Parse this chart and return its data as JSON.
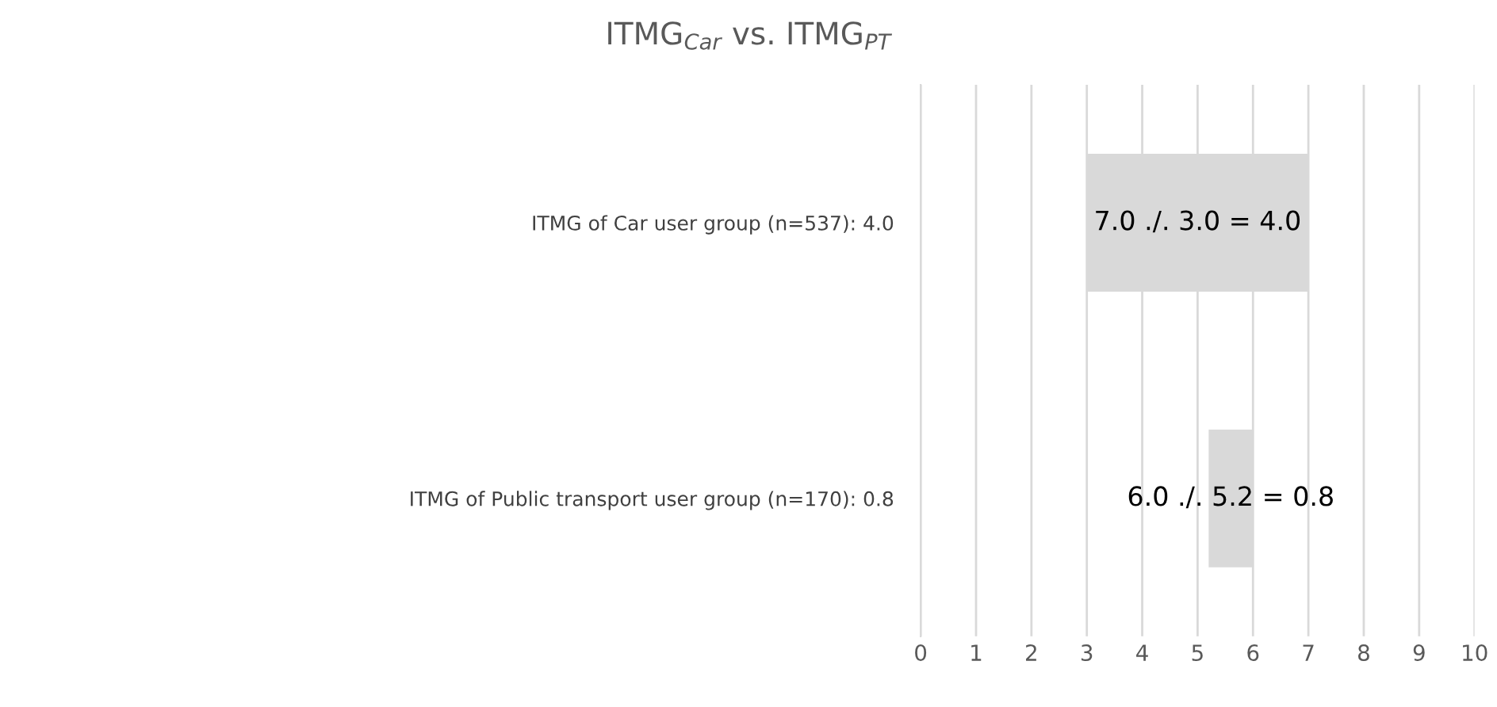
{
  "chart_data": {
    "type": "bar",
    "orientation": "horizontal",
    "title": "ITMG$_{Car}$ vs. ITMG$_{PT}$",
    "categories": [
      "ITMG of Car user group (n=537): 4.0",
      "ITMG of Public transport user group (n=170): 0.8"
    ],
    "values": [
      4.0,
      0.8
    ],
    "base": [
      3.0,
      5.2
    ],
    "color": "#d9d9d9",
    "value_labels": [
      "7.0 ./. 3.0 = 4.0",
      "6.0 ./. 5.2 = 0.8"
    ],
    "xlim": [
      0,
      10
    ],
    "xticks": [
      0,
      1,
      2,
      3,
      4,
      5,
      6,
      7,
      8,
      9,
      10
    ],
    "grid": "x",
    "legend": false
  }
}
